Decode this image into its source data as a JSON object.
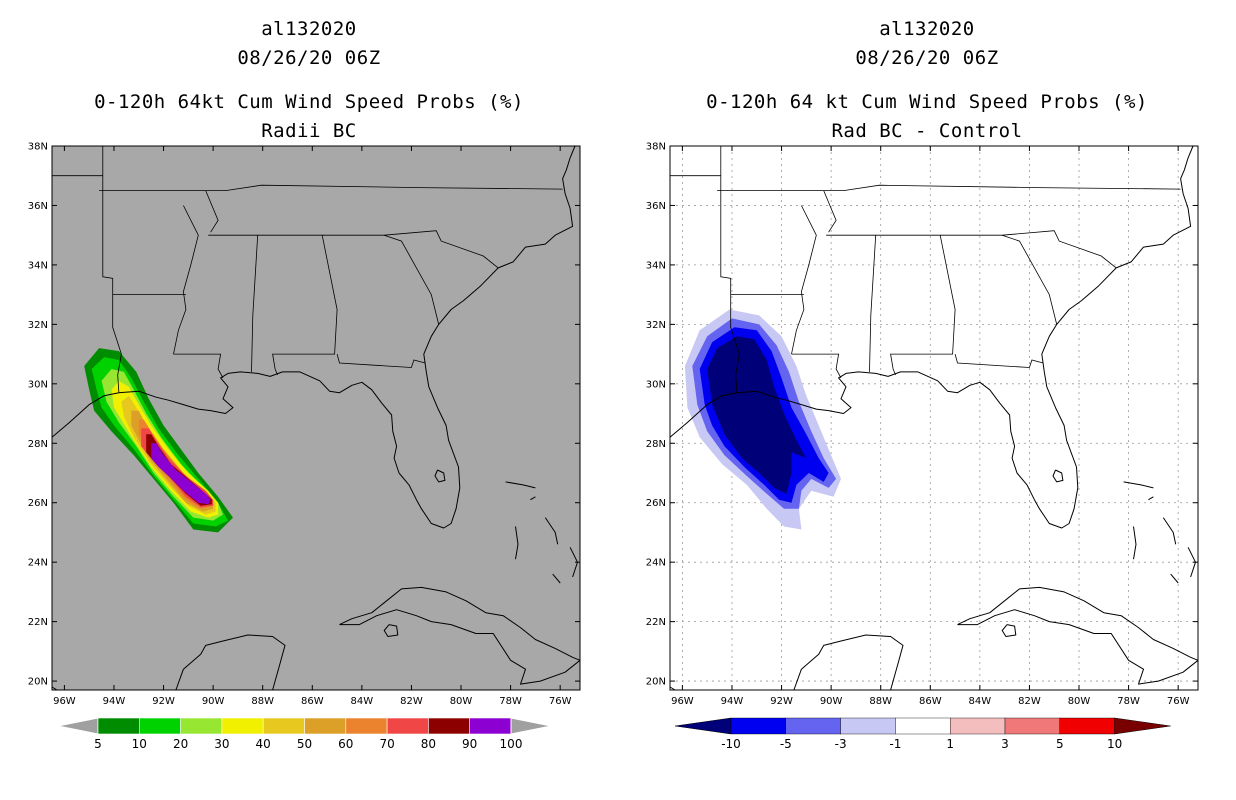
{
  "left_panel": {
    "storm_id": "al132020",
    "datetime": "08/26/20 06Z",
    "product": "0-120h 64kt Cum Wind Speed Probs (%)",
    "subtitle": "Radii BC",
    "background_color": "#a8a8a8",
    "colorbar": {
      "labels": [
        "5",
        "10",
        "20",
        "30",
        "40",
        "50",
        "60",
        "70",
        "80",
        "90",
        "100"
      ],
      "colors": [
        "#008c00",
        "#00d200",
        "#96e632",
        "#f0f000",
        "#e6c81e",
        "#dca028",
        "#eb822d",
        "#f04646",
        "#8c0000",
        "#8c00d2"
      ],
      "end_color": "#a0a0a0"
    }
  },
  "right_panel": {
    "storm_id": "al132020",
    "datetime": "08/26/20 06Z",
    "product": "0-120h 64 kt Cum Wind Speed Probs (%)",
    "subtitle": "Rad BC - Control",
    "background_color": "#ffffff",
    "colorbar": {
      "labels": [
        "-10",
        "-5",
        "-3",
        "-1",
        "1",
        "3",
        "5",
        "10"
      ],
      "colors": [
        "#000078",
        "#0000f0",
        "#6464f0",
        "#c8c8f5",
        "#ffffff",
        "#f5bebe",
        "#f07878",
        "#f00000",
        "#780000"
      ]
    }
  },
  "map": {
    "lat_labels": [
      "38N",
      "36N",
      "34N",
      "32N",
      "30N",
      "28N",
      "26N",
      "24N",
      "22N",
      "20N"
    ],
    "lat_values": [
      38,
      36,
      34,
      32,
      30,
      28,
      26,
      24,
      22,
      20
    ],
    "lon_labels": [
      "96W",
      "94W",
      "92W",
      "90W",
      "88W",
      "86W",
      "84W",
      "82W",
      "80W",
      "78W",
      "76W"
    ],
    "lon_values": [
      -96,
      -94,
      -92,
      -90,
      -88,
      -86,
      -84,
      -82,
      -80,
      -78,
      -76
    ],
    "lon_range": [
      -96.5,
      -75.2
    ],
    "lat_range": [
      19.7,
      38
    ]
  }
}
